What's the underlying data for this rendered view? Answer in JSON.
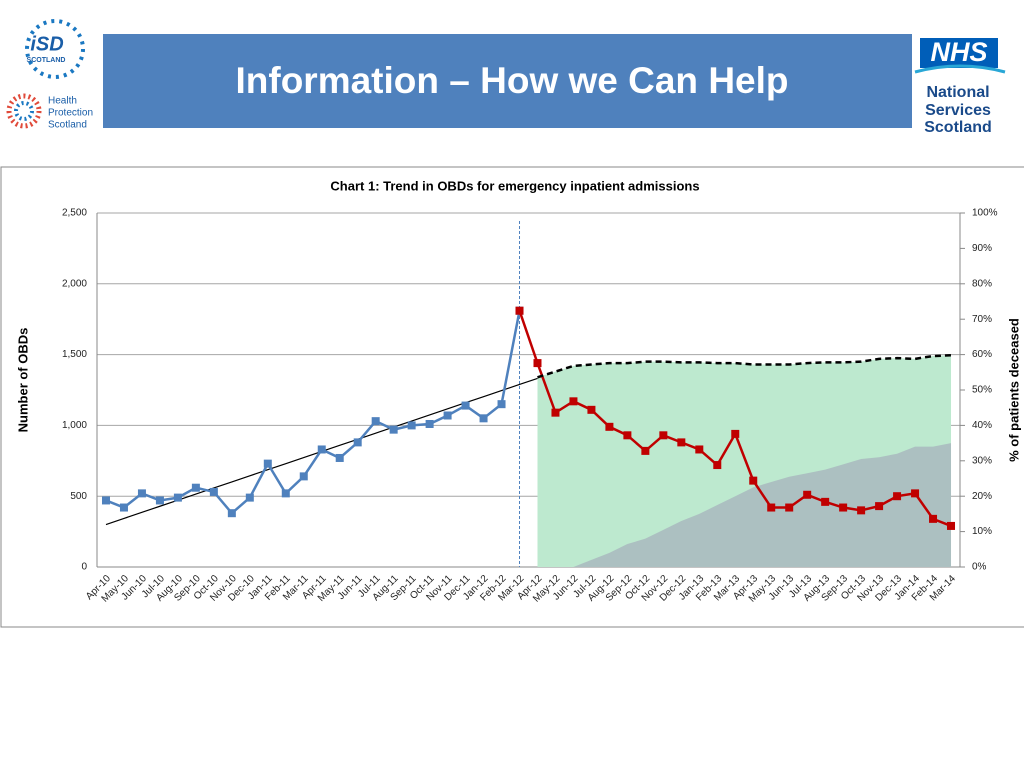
{
  "header": {
    "title": "Information – How we Can Help",
    "isd_logo": [
      "iSD",
      "SCOTLAND"
    ],
    "hps_logo": [
      "Health",
      "Protection",
      "Scotland"
    ],
    "nhs_logo": [
      "NHS",
      "National",
      "Services",
      "Scotland"
    ]
  },
  "chart_data": {
    "type": "line",
    "title": "Chart 1: Trend in OBDs for emergency  inpatient admissions",
    "ylabel": "Number of OBDs",
    "y2label": "% of patients deceased",
    "categories": [
      "Apr-10",
      "May-10",
      "Jun-10",
      "Jul-10",
      "Aug-10",
      "Sep-10",
      "Oct-10",
      "Nov-10",
      "Dec-10",
      "Jan-11",
      "Feb-11",
      "Mar-11",
      "Apr-11",
      "May-11",
      "Jun-11",
      "Jul-11",
      "Aug-11",
      "Sep-11",
      "Oct-11",
      "Nov-11",
      "Dec-11",
      "Jan-12",
      "Feb-12",
      "Mar-12",
      "Apr-12",
      "May-12",
      "Jun-12",
      "Jul-12",
      "Aug-12",
      "Sep-12",
      "Oct-12",
      "Nov-12",
      "Dec-12",
      "Jan-13",
      "Feb-13",
      "Mar-13",
      "Apr-13",
      "May-13",
      "Jun-13",
      "Jul-13",
      "Aug-13",
      "Sep-13",
      "Oct-13",
      "Nov-13",
      "Dec-13",
      "Jan-14",
      "Feb-14",
      "Mar-14"
    ],
    "ylim": [
      0,
      2500
    ],
    "yticks": [
      0,
      500,
      {
        "value": 1000,
        "label": "1,000"
      },
      {
        "value": 1500,
        "label": "1,500"
      },
      {
        "value": 2000,
        "label": "2,000"
      },
      {
        "value": 2500,
        "label": "2,500"
      }
    ],
    "y2lim": [
      0,
      100
    ],
    "y2ticks": [
      {
        "value": 0,
        "label": "0%"
      },
      {
        "value": 10,
        "label": "10%"
      },
      {
        "value": 20,
        "label": "20%"
      },
      {
        "value": 30,
        "label": "30%"
      },
      {
        "value": 40,
        "label": "40%"
      },
      {
        "value": 50,
        "label": "50%"
      },
      {
        "value": 60,
        "label": "60%"
      },
      {
        "value": 70,
        "label": "70%"
      },
      {
        "value": 80,
        "label": "80%"
      },
      {
        "value": 90,
        "label": "90%"
      },
      {
        "value": 100,
        "label": "100%"
      }
    ],
    "grid": true,
    "series": [
      {
        "kind": "area",
        "color": "#bde9cf",
        "dashed": true,
        "line_color": "#000000",
        "values": [
          null,
          null,
          null,
          null,
          null,
          null,
          null,
          null,
          null,
          null,
          null,
          null,
          null,
          null,
          null,
          null,
          null,
          null,
          null,
          null,
          null,
          null,
          null,
          null,
          1340,
          1380,
          1420,
          1430,
          1440,
          1440,
          1450,
          1450,
          1445,
          1445,
          1440,
          1440,
          1430,
          1430,
          1430,
          1440,
          1445,
          1445,
          1450,
          1470,
          1475,
          1470,
          1490,
          1495
        ]
      },
      {
        "kind": "area",
        "axis": "y2",
        "color": "rgba(140,110,165,0.33)",
        "values": [
          null,
          null,
          null,
          null,
          null,
          null,
          null,
          null,
          null,
          null,
          null,
          null,
          null,
          null,
          null,
          null,
          null,
          null,
          null,
          null,
          null,
          null,
          null,
          null,
          null,
          null,
          0,
          2,
          4,
          6.5,
          8,
          10.5,
          13,
          15,
          17.5,
          20,
          22.5,
          24,
          25.5,
          26.5,
          27.5,
          29,
          30.5,
          31,
          32,
          34,
          34,
          35
        ]
      },
      {
        "kind": "line",
        "color": "#000000",
        "values": [
          300,
          343,
          386,
          429,
          472,
          515,
          558,
          601,
          644,
          687,
          730,
          773,
          816,
          859,
          902,
          945,
          988,
          1031,
          1074,
          1117,
          1160,
          1203,
          1246,
          1289,
          1332,
          null,
          null,
          null,
          null,
          null,
          null,
          null,
          null,
          null,
          null,
          null,
          null,
          null,
          null,
          null,
          null,
          null,
          null,
          null,
          null,
          null,
          null,
          null
        ]
      },
      {
        "kind": "line",
        "color": "#4f81bd",
        "markers": true,
        "values": [
          470,
          420,
          520,
          470,
          490,
          560,
          530,
          380,
          490,
          730,
          520,
          640,
          830,
          770,
          880,
          1030,
          970,
          1000,
          1010,
          1070,
          1140,
          1050,
          1150,
          1810,
          null,
          null,
          null,
          null,
          null,
          null,
          null,
          null,
          null,
          null,
          null,
          null,
          null,
          null,
          null,
          null,
          null,
          null,
          null,
          null,
          null,
          null,
          null,
          null
        ]
      },
      {
        "kind": "line",
        "color": "#c00000",
        "markers": true,
        "values": [
          null,
          null,
          null,
          null,
          null,
          null,
          null,
          null,
          null,
          null,
          null,
          null,
          null,
          null,
          null,
          null,
          null,
          null,
          null,
          null,
          null,
          null,
          null,
          1810,
          1440,
          1090,
          1170,
          1110,
          990,
          930,
          820,
          930,
          880,
          830,
          720,
          940,
          610,
          420,
          420,
          510,
          460,
          420,
          400,
          430,
          500,
          520,
          340,
          290
        ]
      }
    ],
    "marker_line_at": "Mar-12"
  }
}
